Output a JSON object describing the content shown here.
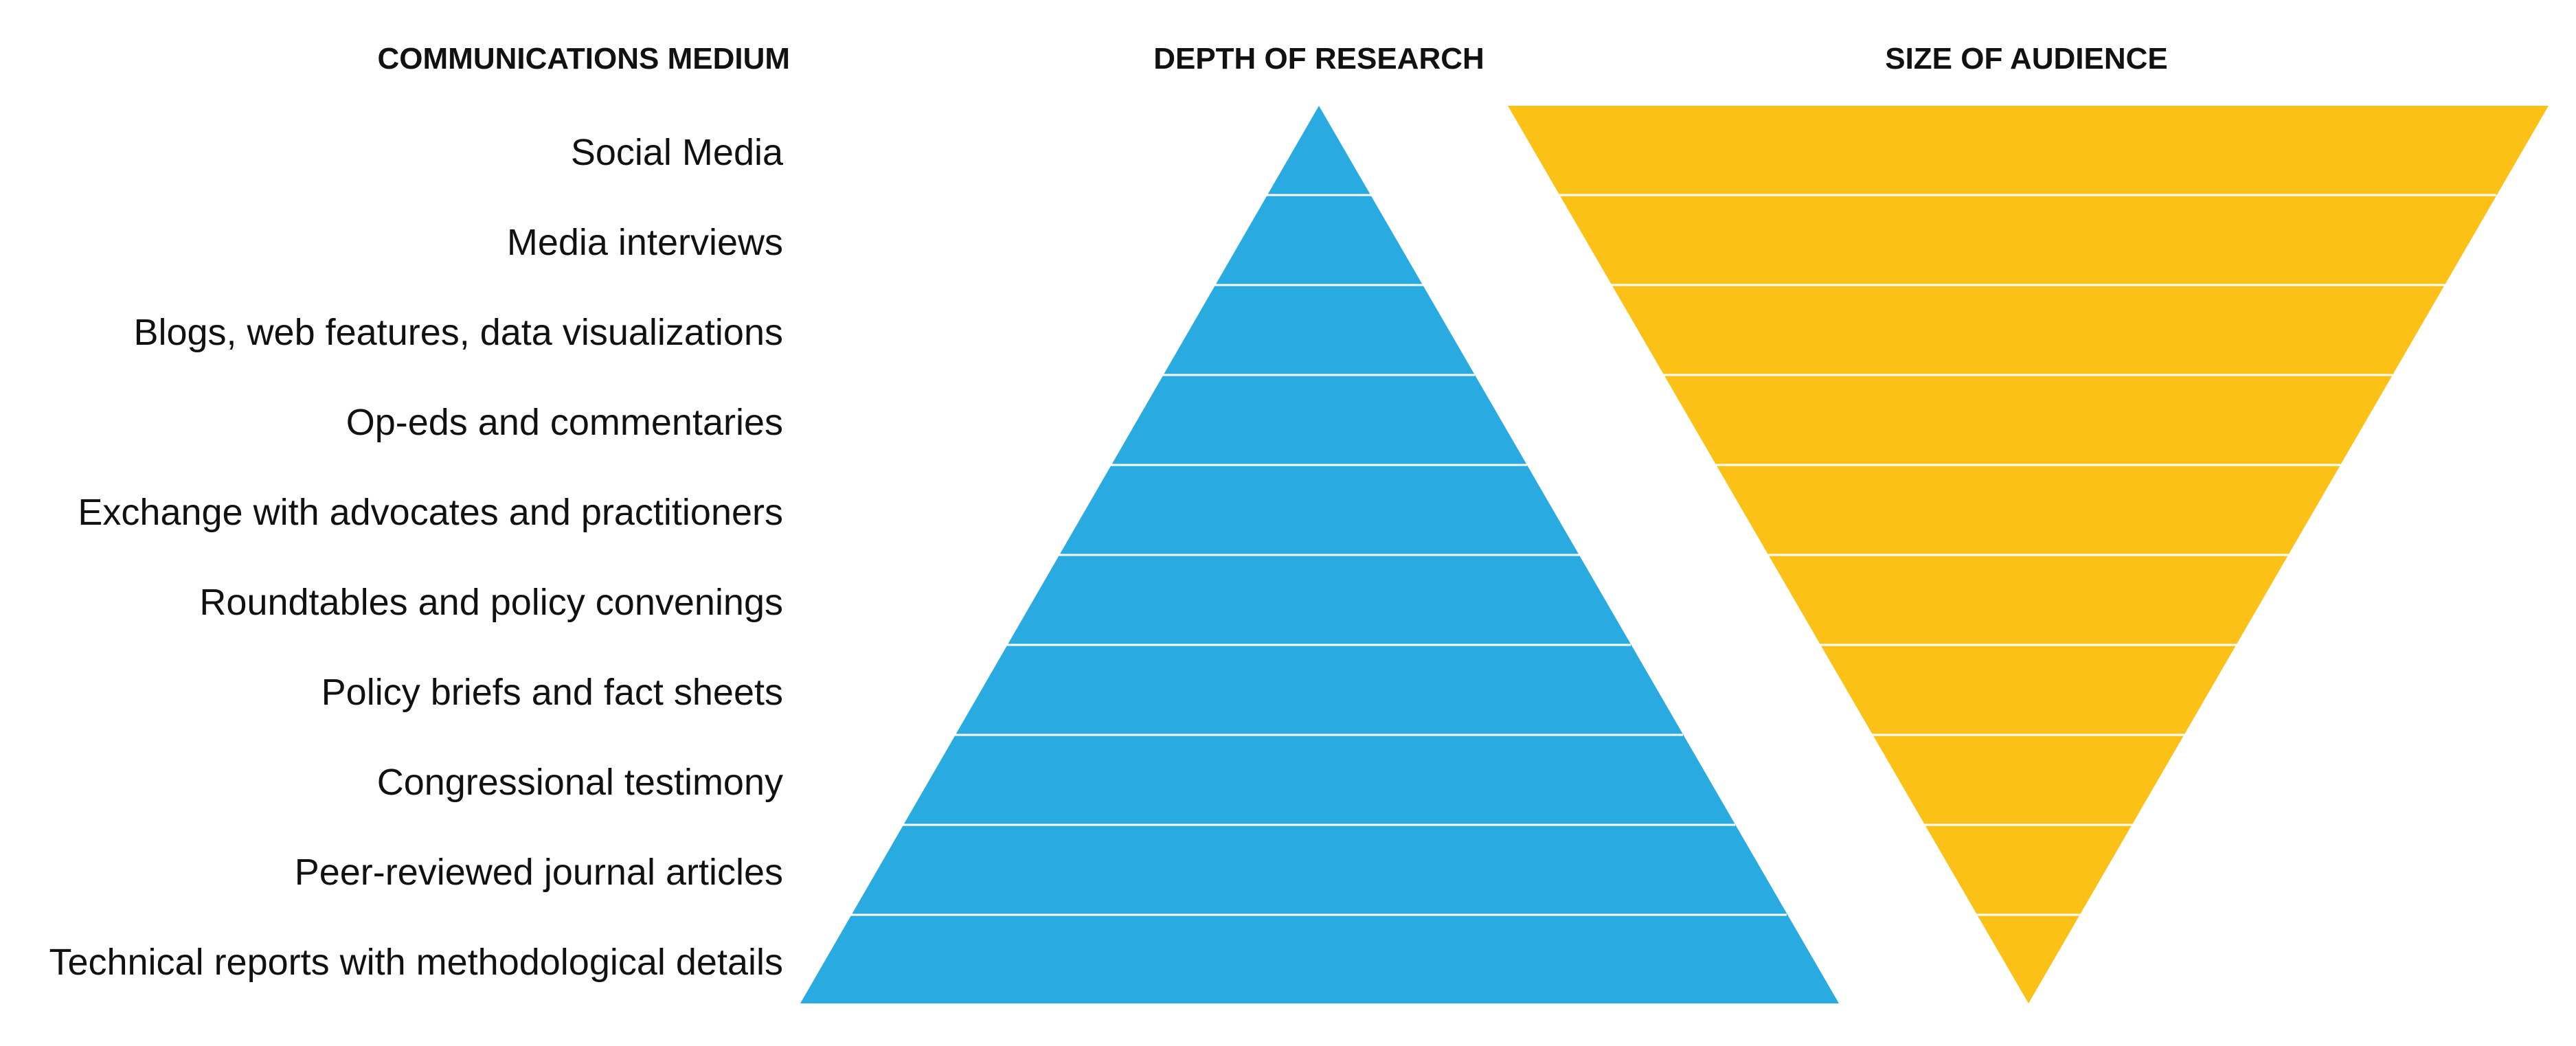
{
  "headers": {
    "medium": "COMMUNICATIONS MEDIUM",
    "depth": "DEPTH OF RESEARCH",
    "audience": "SIZE OF AUDIENCE"
  },
  "media": [
    "Social Media",
    "Media interviews",
    "Blogs, web features, data visualizations",
    "Op-eds and commentaries",
    "Exchange with advocates and practitioners",
    "Roundtables and policy convenings",
    "Policy briefs and fact sheets",
    "Congressional testimony",
    "Peer-reviewed journal articles",
    "Technical reports with methodological details"
  ],
  "colors": {
    "depth_pyramid": "#29abe2",
    "audience_pyramid": "#fbc116",
    "divider": "#ffffff",
    "text": "#111111"
  },
  "shapes": {
    "depth": "upright triangle, widening from top (Social Media) to bottom (Technical reports)",
    "audience": "inverted triangle, narrowing from top (Social Media) to bottom (Technical reports)"
  }
}
